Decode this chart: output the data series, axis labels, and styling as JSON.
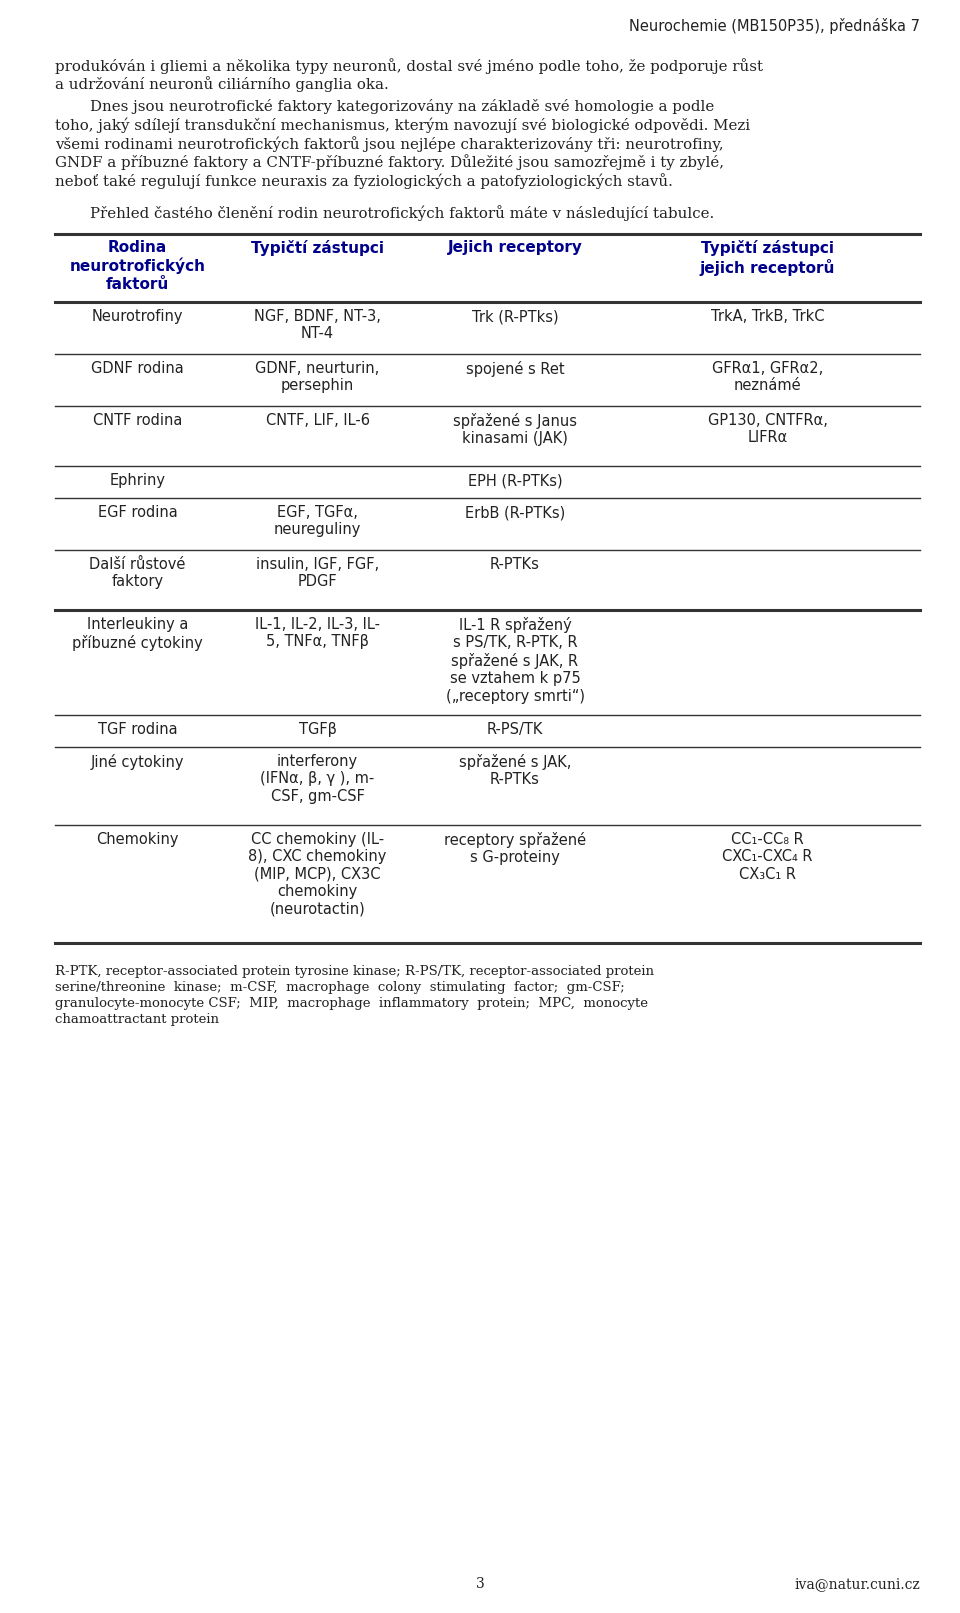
{
  "header_text": "Neurochemie (MB150P35), přednáška 7",
  "paragraph1": "produkóván i gliemi a několika typy neuronů, dostal své jméno podle toho, že podporuje růst\na udržování neuronů ciliárního ganglia oka.",
  "paragraph2_lines": [
    "\tDnes jsou neurotrofické faktory kategorizovány na základě své homologie a podle",
    "toho, jaký sdílejí transdukční mechanismus, kterým navozují své biologické odpovědi. Mezi",
    "všemi rodinami neurotrofických faktorů jsou nejlépe charakterizovány tři: neurotrofiny,",
    "GNDF a příbuzné faktory a CNTF-příbuzné faktory. Důležité jsou samozřejmě i ty zbylé,",
    "neboť také regulují funkce neuraxis za fyziologických a patofyziologických stavů."
  ],
  "paragraph3": "\tPřehled častého členění rodin neurotrofických faktorů máte v následující tabulce.",
  "table_headers": [
    "Rodina\nneurotrofických\nfaktorů",
    "Typičtí zástupci",
    "Jejich receptory",
    "Typičtí zástupci\njejich receptorů"
  ],
  "table_rows": [
    [
      "Neurotrofiny",
      "NGF, BDNF, NT-3,\nNT-4",
      "Trk (R-PTks)",
      "TrkA, TrkB, TrkC"
    ],
    [
      "GDNF rodina",
      "GDNF, neurturin,\npersephin",
      "spojené s Ret",
      "GFRα1, GFRα2,\nneznámé"
    ],
    [
      "CNTF rodina",
      "CNTF, LIF, IL-6",
      "spřažené s Janus\nkinasami (JAK)",
      "GP130, CNTFRα,\nLIFRα"
    ],
    [
      "Ephriny",
      "",
      "EPH (R-PTKs)",
      ""
    ],
    [
      "EGF rodina",
      "EGF, TGFα,\nneureguliny",
      "ErbB (R-PTKs)",
      ""
    ],
    [
      "Další růstové\nfaktory",
      "insulin, IGF, FGF,\nPDGF",
      "R-PTKs",
      ""
    ],
    [
      "Interleukiny a\npříbuzné cytokiny",
      "IL-1, IL-2, IL-3, IL-\n5, TNFα, TNFβ",
      "IL-1 R spřažený\ns PS/TK, R-PTK, R\nspřažené s JAK, R\nse vztahem k p75\n(„receptory smrti“)",
      ""
    ],
    [
      "TGF rodina",
      "TGFβ",
      "R-PS/TK",
      ""
    ],
    [
      "Jiné cytokiny",
      "interferony\n(IFNα, β, γ ), m-\nCSF, gm-CSF",
      "spřažené s JAK,\nR-PTKs",
      ""
    ],
    [
      "Chemokiny",
      "CC chemokiny (IL-\n8), CXC chemokiny\n(MIP, MCP), CX3C\nchemokiny\n(neurotactin)",
      "receptory spřažené\ns G-proteiny",
      "CC₁-CC₈ R\nCXC₁-CXC₄ R\nCX₃C₁ R"
    ]
  ],
  "thick_after_rows": [
    5,
    9
  ],
  "footnote_lines": [
    "R-PTK, receptor-associated protein tyrosine kinase; R-PS/TK, receptor-associated protein",
    "serine/threonine  kinase;  m-CSF,  macrophage  colony  stimulating  factor;  gm-CSF;",
    "granulocyte-monocyte CSF;  MIP,  macrophage  inflammatory  protein;  MPC,  monocyte",
    "chamoattractant protein"
  ],
  "page_number": "3",
  "email": "iva@natur.cuni.cz",
  "header_color": "#222222",
  "table_header_color": "#00008B",
  "body_color": "#222222",
  "bg_color": "#ffffff"
}
